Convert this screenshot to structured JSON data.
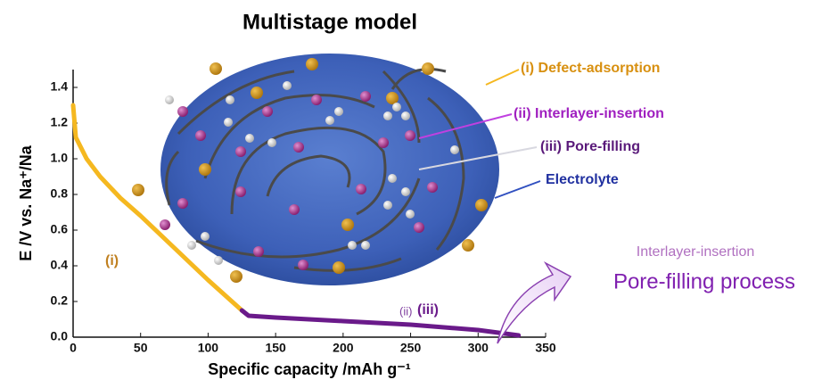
{
  "chart_data": {
    "type": "line",
    "title": "Multistage model",
    "x_label": "Specific capacity /mAh g⁻¹",
    "y_label": "E /V vs. Na⁺/Na",
    "x": [
      0,
      2,
      10,
      20,
      35,
      50,
      75,
      100,
      125,
      130,
      150,
      200,
      250,
      300,
      330
    ],
    "series": [
      {
        "color": "#f5b820",
        "values": [
          1.3,
          1.12,
          1.0,
          0.9,
          0.78,
          0.68,
          0.5,
          0.32,
          0.15,
          null,
          null,
          null,
          null,
          null,
          null
        ]
      },
      {
        "color": "#6a1a8a",
        "values": [
          null,
          null,
          null,
          null,
          null,
          null,
          null,
          null,
          0.15,
          0.12,
          0.11,
          0.09,
          0.07,
          0.04,
          0.01
        ]
      }
    ],
    "xlim": [
      0,
      350
    ],
    "ylim": [
      0,
      1.5
    ],
    "xticks": [
      0,
      50,
      100,
      150,
      200,
      250,
      300,
      350
    ],
    "yticks": [
      {
        "value": 0,
        "label": "0.0"
      },
      0.2,
      0.4,
      0.6,
      0.8,
      {
        "value": 1,
        "label": "1.0"
      },
      1.2,
      1.4
    ],
    "annotations": [
      "(i)",
      "(ii)",
      "(iii)",
      "(i) Defect-adsorption",
      "(ii) Interlayer-insertion",
      "(iii) Pore-filling",
      "Electrolyte"
    ]
  },
  "side_text": {
    "subtitle": "Interlayer-insertion",
    "heading": "Pore-filling process"
  }
}
